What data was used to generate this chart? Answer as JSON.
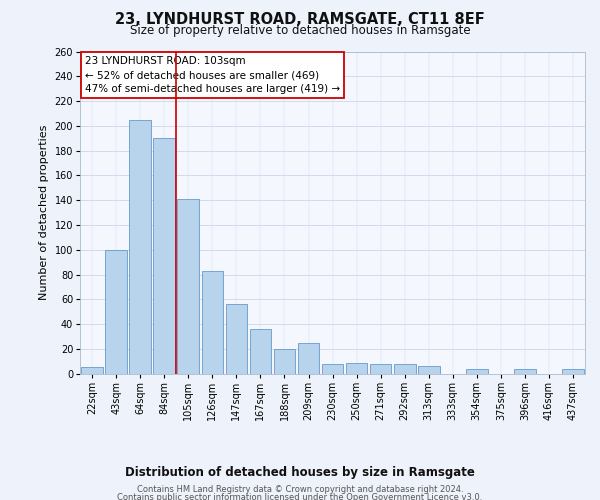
{
  "title": "23, LYNDHURST ROAD, RAMSGATE, CT11 8EF",
  "subtitle": "Size of property relative to detached houses in Ramsgate",
  "xlabel": "Distribution of detached houses by size in Ramsgate",
  "ylabel": "Number of detached properties",
  "bar_labels": [
    "22sqm",
    "43sqm",
    "64sqm",
    "84sqm",
    "105sqm",
    "126sqm",
    "147sqm",
    "167sqm",
    "188sqm",
    "209sqm",
    "230sqm",
    "250sqm",
    "271sqm",
    "292sqm",
    "313sqm",
    "333sqm",
    "354sqm",
    "375sqm",
    "396sqm",
    "416sqm",
    "437sqm"
  ],
  "bar_values": [
    5,
    100,
    205,
    190,
    141,
    83,
    56,
    36,
    20,
    25,
    8,
    9,
    8,
    8,
    6,
    0,
    4,
    0,
    4,
    0,
    4
  ],
  "bar_color": "#b8d4ec",
  "bar_edge_color": "#6699cc",
  "highlight_line_color": "#cc0000",
  "annotation_line1": "23 LYNDHURST ROAD: 103sqm",
  "annotation_line2": "← 52% of detached houses are smaller (469)",
  "annotation_line3": "47% of semi-detached houses are larger (419) →",
  "annotation_box_color": "#ffffff",
  "annotation_box_edge": "#cc0000",
  "ylim": [
    0,
    260
  ],
  "yticks": [
    0,
    20,
    40,
    60,
    80,
    100,
    120,
    140,
    160,
    180,
    200,
    220,
    240,
    260
  ],
  "footer_line1": "Contains HM Land Registry data © Crown copyright and database right 2024.",
  "footer_line2": "Contains public sector information licensed under the Open Government Licence v3.0.",
  "bg_color": "#eef2fa",
  "plot_bg_color": "#f5f7ff",
  "grid_color": "#ccd6e8",
  "title_fontsize": 10.5,
  "subtitle_fontsize": 8.5,
  "ylabel_fontsize": 8,
  "xlabel_fontsize": 8.5,
  "tick_fontsize": 7,
  "annotation_fontsize": 7.5,
  "footer_fontsize": 6
}
